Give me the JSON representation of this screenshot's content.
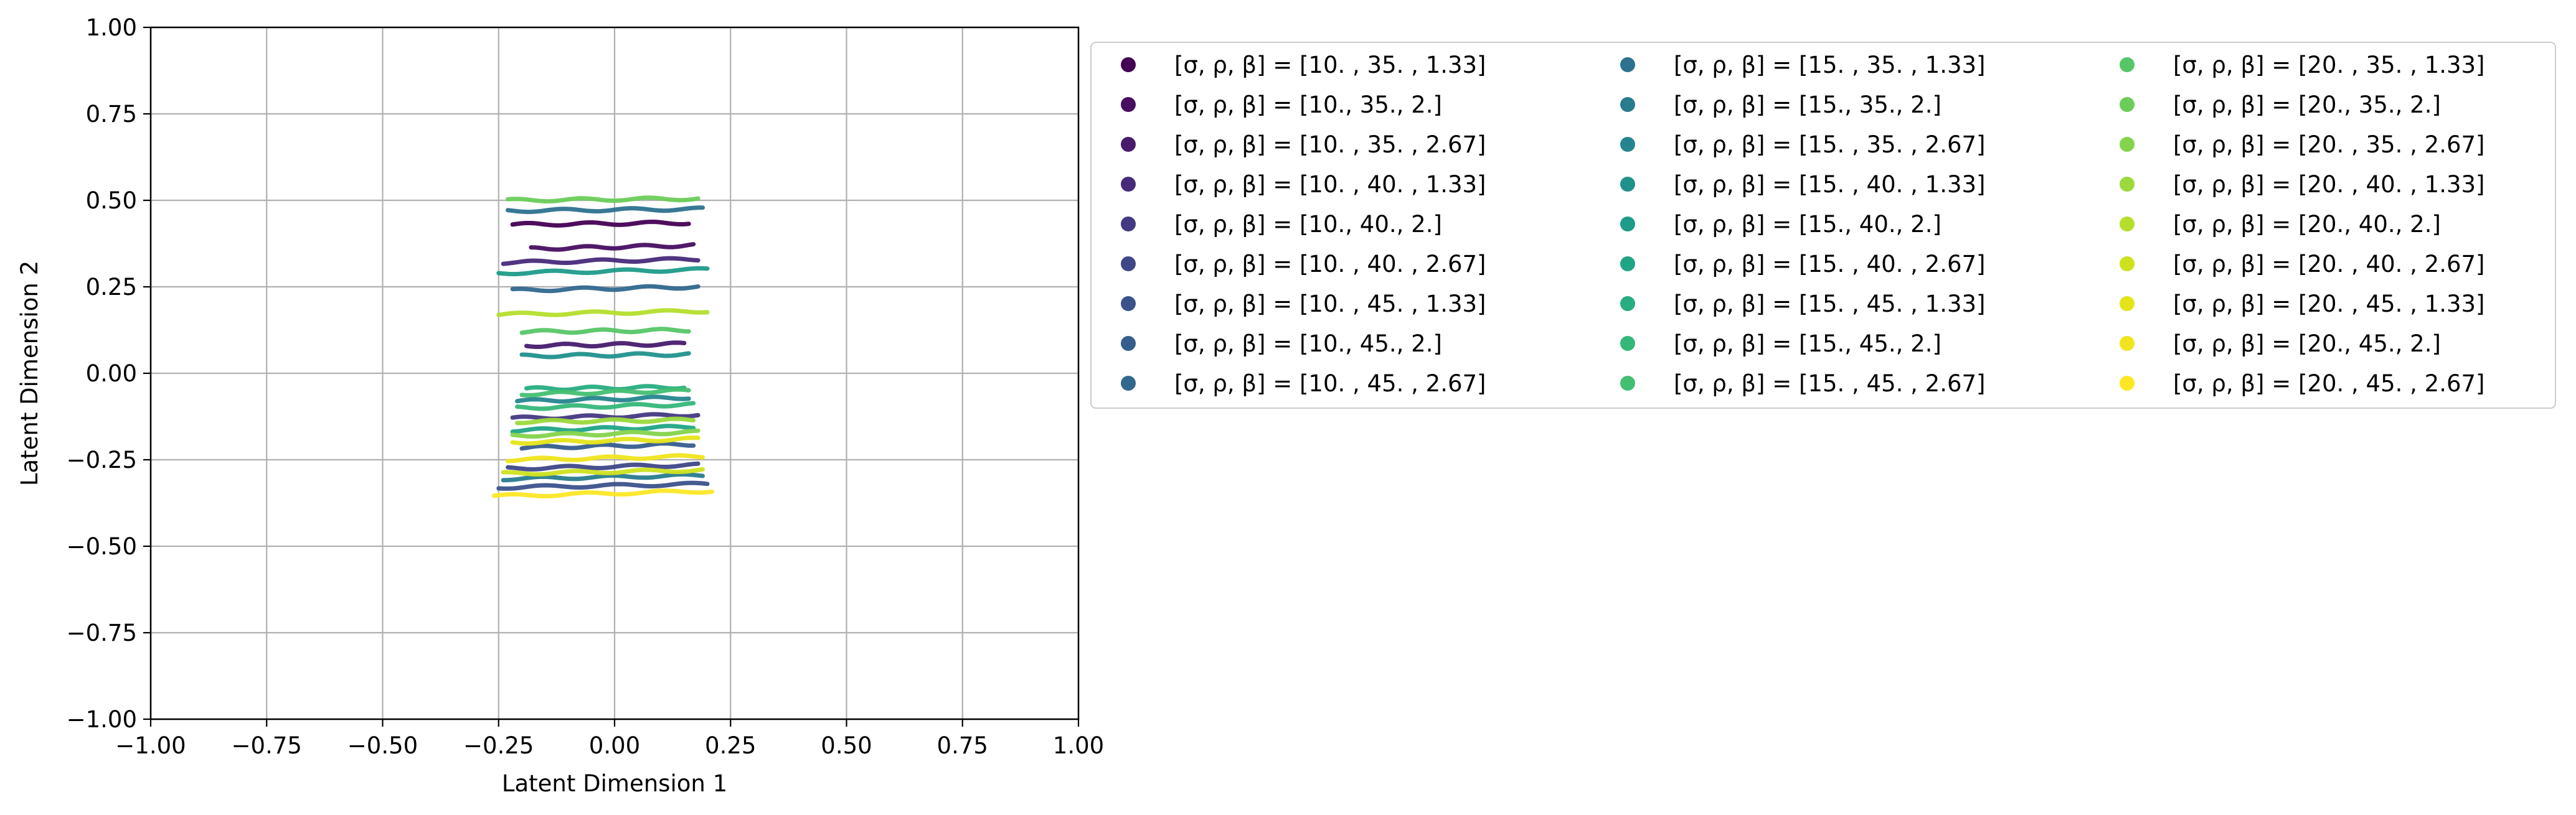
{
  "chart_data": {
    "type": "scatter",
    "title": "",
    "xlabel": "Latent Dimension 1",
    "ylabel": "Latent Dimension 2",
    "xlim": [
      -1.0,
      1.0
    ],
    "ylim": [
      -1.0,
      1.0
    ],
    "xticks": [
      "−1.00",
      "−0.75",
      "−0.50",
      "−0.25",
      "0.00",
      "0.25",
      "0.50",
      "0.75",
      "1.00"
    ],
    "yticks": [
      "−1.00",
      "−0.75",
      "−0.50",
      "−0.25",
      "0.00",
      "0.25",
      "0.50",
      "0.75",
      "1.00"
    ],
    "grid": true,
    "legend_position": "outside-right",
    "legend_columns": 3,
    "series": [
      {
        "name": "[σ, ρ, β] = [10.  , 35.  ,  1.33]",
        "color": "#440154",
        "x": [
          -0.22,
          0.16
        ],
        "y": [
          0.43,
          0.435
        ]
      },
      {
        "name": "[σ, ρ, β] = [10., 35.,  2.]",
        "color": "#470e61",
        "x": [
          -0.18,
          0.17
        ],
        "y": [
          0.36,
          0.37
        ]
      },
      {
        "name": "[σ, ρ, β] = [10.  , 35.  ,  2.67]",
        "color": "#481b6d",
        "x": [
          -0.19,
          0.15
        ],
        "y": [
          0.08,
          0.085
        ]
      },
      {
        "name": "[σ, ρ, β] = [10.  , 40.  ,  1.33]",
        "color": "#472a7a",
        "x": [
          -0.24,
          0.18
        ],
        "y": [
          0.32,
          0.33
        ]
      },
      {
        "name": "[σ, ρ, β] = [10., 40.,  2.]",
        "color": "#443983",
        "x": [
          -0.22,
          0.18
        ],
        "y": [
          -0.13,
          -0.12
        ]
      },
      {
        "name": "[σ, ρ, β] = [10.  , 40.  ,  2.67]",
        "color": "#3f4788",
        "x": [
          -0.23,
          0.18
        ],
        "y": [
          -0.275,
          -0.265
        ]
      },
      {
        "name": "[σ, ρ, β] = [10.  , 45.  ,  1.33]",
        "color": "#3b528b",
        "x": [
          -0.25,
          0.2
        ],
        "y": [
          -0.33,
          -0.32
        ]
      },
      {
        "name": "[σ, ρ, β] = [10., 45.,  2.]",
        "color": "#355e8d",
        "x": [
          -0.2,
          0.17
        ],
        "y": [
          -0.215,
          -0.205
        ]
      },
      {
        "name": "[σ, ρ, β] = [10.  , 45.  ,  2.67]",
        "color": "#31688e",
        "x": [
          -0.22,
          0.18
        ],
        "y": [
          0.24,
          0.25
        ]
      },
      {
        "name": "[σ, ρ, β] = [15.  , 35.  ,  1.33]",
        "color": "#2c728e",
        "x": [
          -0.23,
          0.19
        ],
        "y": [
          0.47,
          0.475
        ]
      },
      {
        "name": "[σ, ρ, β] = [15., 35.,  2.]",
        "color": "#287c8e",
        "x": [
          -0.24,
          0.19
        ],
        "y": [
          -0.305,
          -0.295
        ]
      },
      {
        "name": "[σ, ρ, β] = [15.  , 35.  ,  2.67]",
        "color": "#25858e",
        "x": [
          -0.21,
          0.16
        ],
        "y": [
          -0.08,
          -0.07
        ]
      },
      {
        "name": "[σ, ρ, β] = [15.  , 40.  ,  1.33]",
        "color": "#21918c",
        "x": [
          -0.2,
          0.16
        ],
        "y": [
          0.05,
          0.055
        ]
      },
      {
        "name": "[σ, ρ, β] = [15., 40.,  2.]",
        "color": "#1e9b8a",
        "x": [
          -0.25,
          0.2
        ],
        "y": [
          0.29,
          0.3
        ]
      },
      {
        "name": "[σ, ρ, β] = [15.  , 40.  ,  2.67]",
        "color": "#20a486",
        "x": [
          -0.22,
          0.17
        ],
        "y": [
          -0.165,
          -0.155
        ]
      },
      {
        "name": "[σ, ρ, β] = [15.  , 45.  ,  1.33]",
        "color": "#27ad81",
        "x": [
          -0.19,
          0.15
        ],
        "y": [
          -0.045,
          -0.04
        ]
      },
      {
        "name": "[σ, ρ, β] = [15., 45.,  2.]",
        "color": "#35b779",
        "x": [
          -0.21,
          0.17
        ],
        "y": [
          -0.1,
          -0.09
        ]
      },
      {
        "name": "[σ, ρ, β] = [15.  , 45.  ,  2.67]",
        "color": "#43bf71",
        "x": [
          -0.2,
          0.16
        ],
        "y": [
          -0.06,
          -0.05
        ]
      },
      {
        "name": "[σ, ρ, β] = [20.  , 35.  ,  1.33]",
        "color": "#56c667",
        "x": [
          -0.2,
          0.16
        ],
        "y": [
          0.12,
          0.125
        ]
      },
      {
        "name": "[σ, ρ, β] = [20., 35.,  2.]",
        "color": "#6ccd5a",
        "x": [
          -0.23,
          0.18
        ],
        "y": [
          0.5,
          0.505
        ]
      },
      {
        "name": "[σ, ρ, β] = [20.  , 35.  ,  2.67]",
        "color": "#84d44b",
        "x": [
          -0.22,
          0.18
        ],
        "y": [
          -0.18,
          -0.17
        ]
      },
      {
        "name": "[σ, ρ, β] = [20.  , 40.  ,  1.33]",
        "color": "#9bd93c",
        "x": [
          -0.21,
          0.17
        ],
        "y": [
          -0.14,
          -0.135
        ]
      },
      {
        "name": "[σ, ρ, β] = [20., 40.,  2.]",
        "color": "#b5de2b",
        "x": [
          -0.25,
          0.2
        ],
        "y": [
          0.17,
          0.18
        ]
      },
      {
        "name": "[σ, ρ, β] = [20.  , 40.  ,  2.67]",
        "color": "#cde11d",
        "x": [
          -0.24,
          0.19
        ],
        "y": [
          -0.29,
          -0.28
        ]
      },
      {
        "name": "[σ, ρ, β] = [20.  , 45.  ,  1.33]",
        "color": "#e5e419",
        "x": [
          -0.22,
          0.18
        ],
        "y": [
          -0.2,
          -0.19
        ]
      },
      {
        "name": "[σ, ρ, β] = [20., 45.,  2.]",
        "color": "#f0e51c",
        "x": [
          -0.23,
          0.19
        ],
        "y": [
          -0.25,
          -0.24
        ]
      },
      {
        "name": "[σ, ρ, β] = [20.  , 45.  ,  2.67]",
        "color": "#fde725",
        "x": [
          -0.26,
          0.21
        ],
        "y": [
          -0.355,
          -0.34
        ]
      }
    ]
  }
}
